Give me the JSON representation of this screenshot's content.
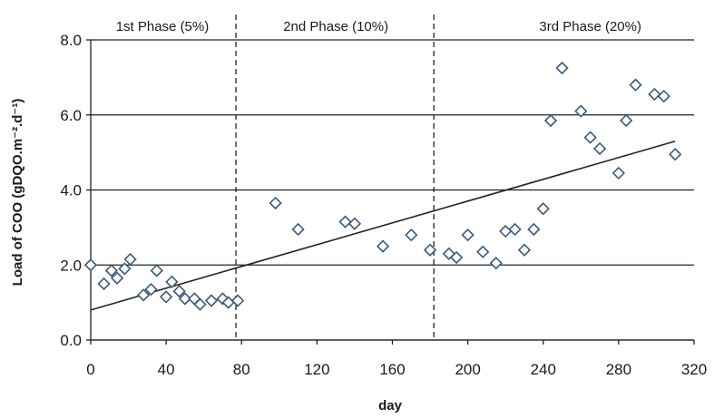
{
  "chart_data": {
    "type": "scatter",
    "xlabel": "day",
    "ylabel": "Load of COO (gDQO.m⁻².d⁻¹)",
    "xlim": [
      0,
      320
    ],
    "ylim": [
      0,
      8
    ],
    "x_ticks": [
      0,
      40,
      80,
      120,
      160,
      200,
      240,
      280,
      320
    ],
    "y_ticks": [
      0,
      2,
      4,
      6,
      8
    ],
    "x_tick_labels": [
      "0",
      "40",
      "80",
      "120",
      "160",
      "200",
      "240",
      "280",
      "320"
    ],
    "y_tick_labels": [
      "0.0",
      "2.0",
      "4.0",
      "6.0",
      "8.0"
    ],
    "horizontal_grid": true,
    "phase_dividers": [
      77,
      182
    ],
    "phase_labels": [
      {
        "text": "1st Phase (5%)",
        "x_center": 38
      },
      {
        "text": "2nd Phase (10%)",
        "x_center": 130
      },
      {
        "text": "3rd Phase  (20%)",
        "x_center": 265
      }
    ],
    "trendline": {
      "x": [
        0,
        310
      ],
      "y": [
        0.8,
        5.3
      ]
    },
    "series": [
      {
        "marker": "diamond",
        "color": "#3a5a7a",
        "points": [
          [
            0,
            2.0
          ],
          [
            7,
            1.5
          ],
          [
            11,
            1.85
          ],
          [
            14,
            1.65
          ],
          [
            18,
            1.9
          ],
          [
            21,
            2.15
          ],
          [
            28,
            1.2
          ],
          [
            32,
            1.35
          ],
          [
            35,
            1.85
          ],
          [
            40,
            1.15
          ],
          [
            43,
            1.55
          ],
          [
            47,
            1.3
          ],
          [
            50,
            1.1
          ],
          [
            55,
            1.1
          ],
          [
            58,
            0.95
          ],
          [
            64,
            1.05
          ],
          [
            70,
            1.1
          ],
          [
            73,
            1.0
          ],
          [
            78,
            1.05
          ],
          [
            98,
            3.65
          ],
          [
            110,
            2.95
          ],
          [
            135,
            3.15
          ],
          [
            140,
            3.1
          ],
          [
            155,
            2.5
          ],
          [
            170,
            2.8
          ],
          [
            180,
            2.4
          ],
          [
            190,
            2.3
          ],
          [
            194,
            2.2
          ],
          [
            200,
            2.8
          ],
          [
            208,
            2.35
          ],
          [
            215,
            2.05
          ],
          [
            220,
            2.9
          ],
          [
            225,
            2.95
          ],
          [
            230,
            2.4
          ],
          [
            235,
            2.95
          ],
          [
            240,
            3.5
          ],
          [
            244,
            5.85
          ],
          [
            250,
            7.25
          ],
          [
            260,
            6.1
          ],
          [
            265,
            5.4
          ],
          [
            270,
            5.1
          ],
          [
            280,
            4.45
          ],
          [
            284,
            5.85
          ],
          [
            289,
            6.8
          ],
          [
            299,
            6.55
          ],
          [
            304,
            6.5
          ],
          [
            310,
            4.95
          ]
        ]
      }
    ]
  }
}
